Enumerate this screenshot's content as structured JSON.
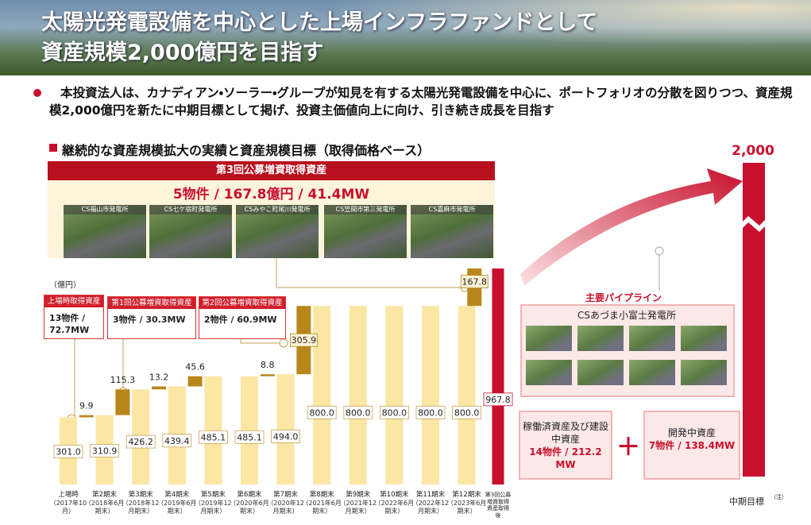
{
  "header": {
    "title_lines": [
      "太陽光発電設備を中心とした上場インフラファンドとして",
      "資産規模2,000億円を目指す"
    ]
  },
  "bullet": "本投資法人は、カナディアン・ソーラー・グループが知見を有する太陽光発電設備を中心に、ポートフォリオの分散を図りつつ、資産規模2,000億円を新たに中期目標として掲げ、投資主価値向上に向け、引き続き成長を目指す",
  "section_heading": "継続的な資産規模拡大の実績と資産規模目標（取得価格ベース）",
  "offering": {
    "title": "第3回公募増資取得資産",
    "summary": "5物件 / 167.8億円 / 41.4MW",
    "plants": [
      "CS福山市発電所",
      "CS七ケ宿町発電所",
      "CSみやこ町尾川発電所",
      "CS笠間市第三発電所",
      "CS嘉麻市発電所"
    ]
  },
  "callouts": [
    {
      "title": "上場時取得資産",
      "body": "13物件 / 72.7MW"
    },
    {
      "title": "第1回公募増資取得資産",
      "body": "3物件 / 30.3MW"
    },
    {
      "title": "第2回公募増資取得資産",
      "body": "2物件 / 60.9MW"
    }
  ],
  "pipeline": {
    "title": "主要パイプライン",
    "plant": "CSあづま小富士発電所"
  },
  "assets": [
    {
      "title": "稼働済資産及び建設中資産",
      "body": "14物件 / 212.2 MW"
    },
    {
      "title": "開発中資産",
      "body": "7物件 / 138.4MW"
    }
  ],
  "plus": "＋",
  "chart_data": {
    "type": "waterfall",
    "unit": "（億円）",
    "categories": [
      "上場時",
      "第2期末",
      "第3期末",
      "第4期末",
      "第5期末",
      "第6期末",
      "第7期末",
      "第8期末",
      "第9期末",
      "第10期末",
      "第11期末",
      "第12期末",
      "第3回公募増資取得資産取得後"
    ],
    "category_notes": [
      "（2017年10月）",
      "（2018年6月期末）",
      "（2018年12月期末）",
      "（2019年6月期末）",
      "（2019年12月期末）",
      "（2020年6月期末）",
      "（2020年12月期末）",
      "（2021年6月期末）",
      "（2021年12月期末）",
      "（2022年6月期末）",
      "（2022年12月期末）",
      "（2023年6月期末）",
      null
    ],
    "values": [
      301.0,
      310.9,
      426.2,
      439.4,
      485.1,
      485.1,
      494.0,
      800.0,
      800.0,
      800.0,
      800.0,
      800.0,
      967.8
    ],
    "value_labels": [
      "301.0",
      "310.9",
      "426.2",
      "439.4",
      "485.1",
      "485.1",
      "494.0",
      "800.0",
      "800.0",
      "800.0",
      "800.0",
      "800.0",
      "967.8"
    ],
    "color": "#fbe6a4",
    "final_color": "#c8102e",
    "increments": [
      9.9,
      115.3,
      13.2,
      45.6,
      null,
      8.8,
      305.9,
      null,
      null,
      null,
      null,
      167.8
    ],
    "increment_color": "#b9861c",
    "target": {
      "value": 2000,
      "label": "2,000",
      "name": "中期目標",
      "note": "（注）",
      "color": "#c8102e"
    }
  }
}
